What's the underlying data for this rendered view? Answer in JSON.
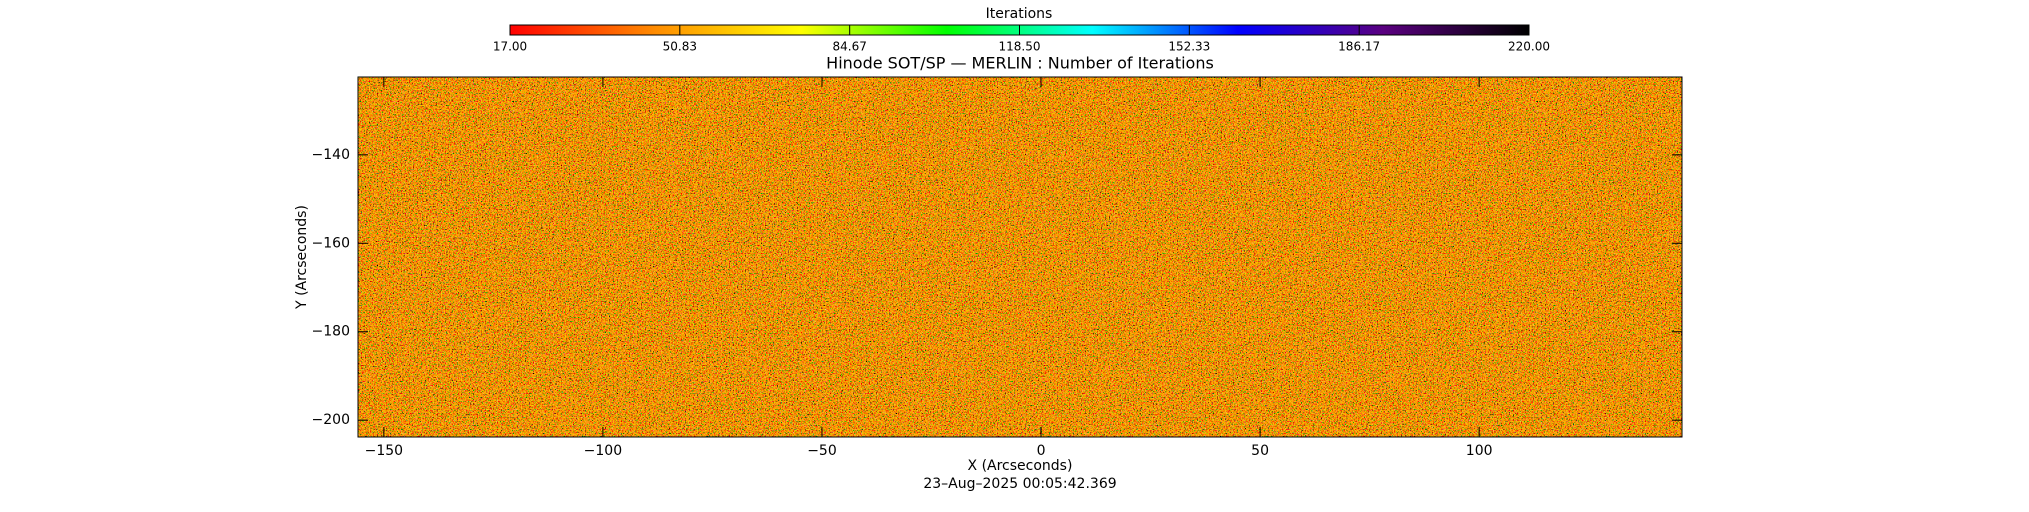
{
  "chart_data": {
    "type": "heatmap",
    "title": "Hinode SOT/SP — MERLIN : Number of Iterations",
    "xlabel": "X (Arcseconds)",
    "ylabel": "Y (Arcseconds)",
    "annotation": "23–Aug–2025 00:05:42.369",
    "xlim": [
      -155.9,
      146.3
    ],
    "ylim": [
      -203.8,
      -122.4
    ],
    "xticks": [
      {
        "value": -150,
        "label": "−150"
      },
      {
        "value": -100,
        "label": "−100"
      },
      {
        "value": -50,
        "label": "−50"
      },
      0,
      50,
      100
    ],
    "yticks": [
      {
        "value": -140,
        "label": "−140"
      },
      {
        "value": -160,
        "label": "−160"
      },
      {
        "value": -180,
        "label": "−180"
      },
      {
        "value": -200,
        "label": "−200"
      }
    ],
    "colorbar": {
      "title": "Iterations",
      "lim": [
        17,
        220
      ],
      "ticks": [
        {
          "value": 17,
          "label": "17.00"
        },
        {
          "value": 50.83,
          "label": "50.83"
        },
        {
          "value": 84.67,
          "label": "84.67"
        },
        {
          "value": 118.5,
          "label": "118.50"
        },
        {
          "value": 152.33,
          "label": "152.33"
        },
        {
          "value": 186.17,
          "label": "186.17"
        },
        {
          "value": 220,
          "label": "220.00"
        }
      ],
      "colors": [
        "#ff0000",
        "#ff8c00",
        "#ffff00",
        "#00ff00",
        "#00ffff",
        "#0000ff",
        "#5a0080",
        "#000000"
      ]
    }
  }
}
